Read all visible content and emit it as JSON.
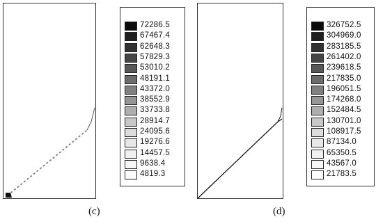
{
  "panels": [
    {
      "caption": "(c)",
      "legend": {
        "levels": [
          "72286.5",
          "67467.4",
          "62648.3",
          "57829.3",
          "53010.2",
          "48191.1",
          "43372.0",
          "38552.9",
          "33733.8",
          "28914.7",
          "24095.6",
          "19276.6",
          "14457.5",
          "9638.4",
          "4819.3"
        ],
        "colors": [
          "#0b0b0b",
          "#1f1f1f",
          "#333333",
          "#454545",
          "#585858",
          "#6c6c6c",
          "#808080",
          "#969696",
          "#aeaeae",
          "#c8c8c8",
          "#dcdcdc",
          "#e8e8e8",
          "#f0f0f0",
          "#f6f6f6",
          "#fbfbfb"
        ]
      }
    },
    {
      "caption": "(d)",
      "legend": {
        "levels": [
          "326752.5",
          "304969.0",
          "283185.5",
          "261402.0",
          "239618.5",
          "217835.0",
          "196051.5",
          "174268.0",
          "152484.5",
          "130701.0",
          "108917.5",
          "87134.0",
          "65350.5",
          "43567.0",
          "21783.5"
        ],
        "colors": [
          "#0b0b0b",
          "#1f1f1f",
          "#333333",
          "#454545",
          "#585858",
          "#6c6c6c",
          "#808080",
          "#969696",
          "#aeaeae",
          "#c8c8c8",
          "#dcdcdc",
          "#e8e8e8",
          "#f0f0f0",
          "#f6f6f6",
          "#fbfbfb"
        ]
      }
    }
  ]
}
